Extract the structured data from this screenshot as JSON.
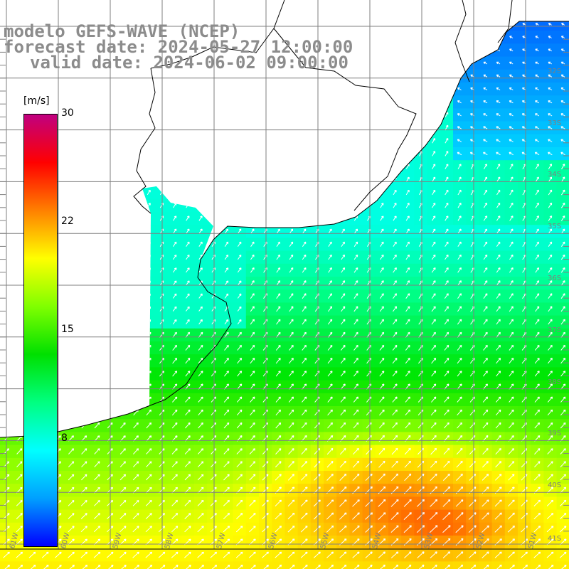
{
  "titles": {
    "line1": "modelo GEFS-WAVE (NCEP)",
    "line2": "forecast date: 2024-05-27 12:00:00",
    "line3": "valid date: 2024-06-02 09:00:00"
  },
  "colorbar": {
    "unit": "[m/s]",
    "ticks": [
      "30",
      "22",
      "15",
      "8"
    ],
    "stops": [
      "#0000ff",
      "#00a0ff",
      "#00ffff",
      "#00ff80",
      "#00e000",
      "#80ff00",
      "#ffff00",
      "#ff8000",
      "#ff0000",
      "#c00080"
    ]
  },
  "axes": {
    "lat_labels": [
      "32S",
      "33S",
      "34S",
      "35S",
      "36S",
      "37S",
      "38S",
      "39S",
      "40S",
      "41S"
    ],
    "lon_labels": [
      "61W",
      "60W",
      "59W",
      "58W",
      "57W",
      "56W",
      "55W",
      "54W",
      "53W",
      "52W",
      "51W"
    ]
  },
  "field": {
    "variable": "wind speed",
    "range": [
      0,
      30
    ],
    "arrow_direction": "north-east"
  }
}
